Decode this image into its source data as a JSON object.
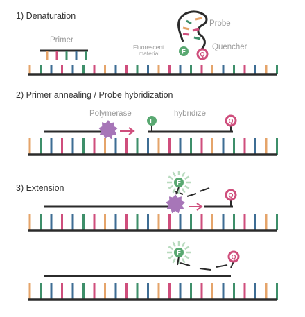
{
  "steps": [
    {
      "title": "1) Denaturation"
    },
    {
      "title": "2) Primer annealing / Probe hybridization"
    },
    {
      "title": "3) Extension"
    }
  ],
  "labels": {
    "primer": "Primer",
    "probe": "Probe",
    "fluorescent_line1": "Fluorescent",
    "fluorescent_line2": "material",
    "quencher": "Quencher",
    "polymerase": "Polymerase",
    "hybridize": "hybridize"
  },
  "markers": {
    "fluorophore_letter": "F",
    "quencher_letter": "Q"
  },
  "colors": {
    "strand": "#2b2b2b",
    "base_orange": "#e5a46a",
    "base_blue": "#3e6d94",
    "base_pink": "#cf4e7c",
    "base_green": "#3e8f6a",
    "fluor_fill": "#59a871",
    "fluor_glow": "#b9dbbf",
    "quencher_fill": "#e4a9bc",
    "quencher_stroke": "#cf4e7c",
    "polymerase": "#a776b8",
    "arrow": "#cf4e7c",
    "label_gray": "#9a9a9a"
  },
  "base_sequence": [
    "orange",
    "green",
    "blue",
    "pink",
    "blue",
    "green",
    "pink",
    "orange",
    "blue",
    "pink",
    "green",
    "blue",
    "orange",
    "pink",
    "blue",
    "green",
    "pink",
    "orange",
    "blue",
    "green",
    "pink",
    "blue",
    "orange",
    "green"
  ]
}
